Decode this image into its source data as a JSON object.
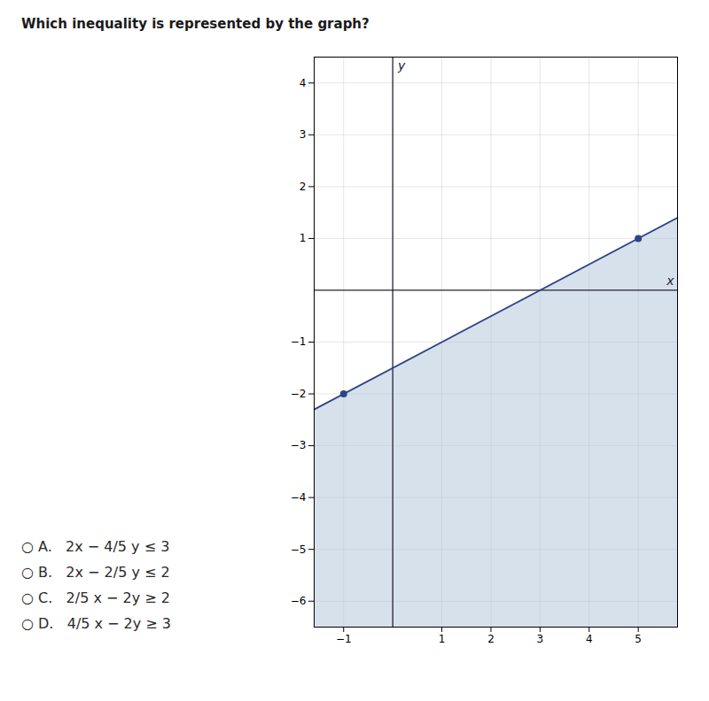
{
  "chart_data": {
    "type": "line",
    "title": "Which inequality is represented by the graph?",
    "xlim": [
      -1.6,
      5.8
    ],
    "ylim": [
      -6.5,
      4.5
    ],
    "xticks": [
      -1,
      1,
      2,
      3,
      4,
      5
    ],
    "yticks": [
      -6,
      -5,
      -4,
      -3,
      -2,
      -1,
      1,
      2,
      3,
      4
    ],
    "grid": true,
    "x_label": "x",
    "y_label": "y",
    "series": [
      {
        "type": "area",
        "color": "#b0c4d8",
        "x": [
          -1.6,
          5.8
        ],
        "values": [
          -2.3,
          1.4
        ]
      },
      {
        "type": "line",
        "color": "#2E4488",
        "x": [
          -1.6,
          5.8
        ],
        "values": [
          -2.3,
          1.4
        ]
      },
      {
        "type": "scatter",
        "color": "#2E4488",
        "x": [
          -1,
          5
        ],
        "values": [
          -2,
          1
        ]
      }
    ],
    "annotations": [
      "○ A.   2x − 4/5 y ≤ 3",
      "○ B.   2x − 2/5 y ≤ 2",
      "○ C.   2/5 x − 2y ≥ 2",
      "○ D.   4/5 x − 2y ≥ 3"
    ]
  }
}
